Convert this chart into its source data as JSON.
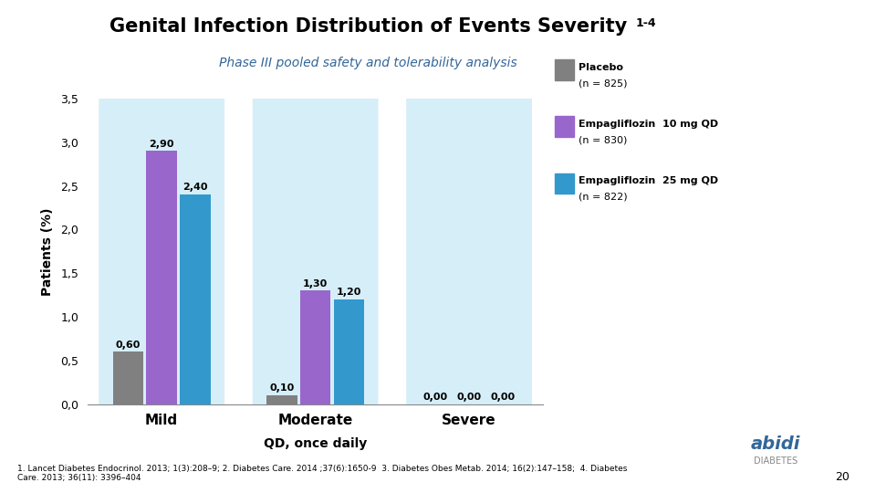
{
  "title": "Genital Infection Distribution of Events Severity",
  "title_superscript": "1-4",
  "subtitle": "Phase III pooled safety and tolerability analysis",
  "categories": [
    "Mild",
    "Moderate",
    "Severe"
  ],
  "series": [
    {
      "label": "Placebo\n(n = 825)",
      "color": "#808080",
      "values": [
        0.6,
        0.1,
        0.0
      ]
    },
    {
      "label": "Empagliflozin  10 mg QD\n(n = 830)",
      "color": "#9966CC",
      "values": [
        2.9,
        1.3,
        0.0
      ]
    },
    {
      "label": "Empagliflozin  25 mg QD\n(n = 822)",
      "color": "#3399CC",
      "values": [
        2.4,
        1.2,
        0.0
      ]
    }
  ],
  "ylim": [
    0,
    3.5
  ],
  "yticks": [
    0.0,
    0.5,
    1.0,
    1.5,
    2.0,
    2.5,
    3.0,
    3.5
  ],
  "ytick_labels": [
    "0,0",
    "0,5",
    "1,0",
    "1,5",
    "2,0",
    "2,5",
    "3,0",
    "3,5"
  ],
  "ylabel": "Patients (%)",
  "xlabel": "QD, once daily",
  "footnote": "1. Lancet Diabetes Endocrinol. 2013; 1(3):208–9; 2. Diabetes Care. 2014 ;37(6):1650-9  3. Diabetes Obes Metab. 2014; 16(2):147–158;  4. Diabetes\nCare. 2013; 36(11): 3396–404",
  "page_number": "20",
  "bg_highlight_color": "#D6EEF8",
  "bar_width": 0.22,
  "value_labels": [
    [
      "0,60",
      "0,10",
      "0,00"
    ],
    [
      "2,90",
      "1,30",
      "0,00"
    ],
    [
      "2,40",
      "1,20",
      "0,00"
    ]
  ],
  "legend_entries": [
    {
      "color": "#808080",
      "line1": "Placebo",
      "line2": "(n = 825)"
    },
    {
      "color": "#9966CC",
      "line1": "Empagliflozin  10 mg QD",
      "line2": "(n = 830)"
    },
    {
      "color": "#3399CC",
      "line1": "Empagliflozin  25 mg QD",
      "line2": "(n = 822)"
    }
  ]
}
